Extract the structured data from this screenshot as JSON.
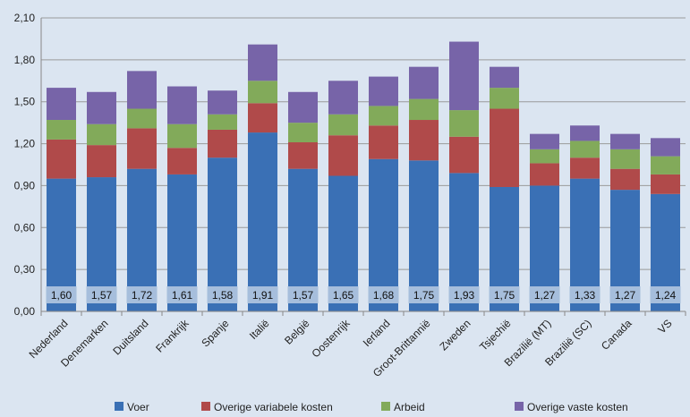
{
  "chart_data": {
    "type": "bar",
    "stacked": true,
    "categories": [
      "Nederland",
      "Denemarken",
      "Duitsland",
      "Frankrijk",
      "Spanje",
      "Italië",
      "België",
      "Oostenrijk",
      "Ierland",
      "Groot-Brittannië",
      "Zweden",
      "Tsjechië",
      "Brazilië (MT)",
      "Brazilië (SC)",
      "Canada",
      "VS"
    ],
    "series": [
      {
        "name": "Voer",
        "color": "#3a70b5",
        "values": [
          0.95,
          0.96,
          1.02,
          0.98,
          1.1,
          1.28,
          1.02,
          0.97,
          1.09,
          1.08,
          0.99,
          0.89,
          0.9,
          0.95,
          0.87,
          0.84
        ]
      },
      {
        "name": "Overige variabele kosten",
        "color": "#b04a4a",
        "values": [
          0.28,
          0.23,
          0.29,
          0.19,
          0.2,
          0.21,
          0.19,
          0.29,
          0.24,
          0.29,
          0.26,
          0.56,
          0.16,
          0.15,
          0.15,
          0.14
        ]
      },
      {
        "name": "Arbeid",
        "color": "#82aa5a",
        "values": [
          0.14,
          0.15,
          0.14,
          0.17,
          0.11,
          0.16,
          0.14,
          0.15,
          0.14,
          0.15,
          0.19,
          0.15,
          0.1,
          0.12,
          0.14,
          0.13
        ]
      },
      {
        "name": "Overige vaste kosten",
        "color": "#7764a8",
        "values": [
          0.23,
          0.23,
          0.27,
          0.27,
          0.17,
          0.26,
          0.22,
          0.24,
          0.21,
          0.23,
          0.49,
          0.15,
          0.11,
          0.11,
          0.11,
          0.13
        ]
      }
    ],
    "totals_labels": [
      "1,60",
      "1,57",
      "1,72",
      "1,61",
      "1,58",
      "1,91",
      "1,57",
      "1,65",
      "1,68",
      "1,75",
      "1,93",
      "1,75",
      "1,27",
      "1,33",
      "1,27",
      "1,24"
    ],
    "y_ticks": [
      "0,00",
      "0,30",
      "0,60",
      "0,90",
      "1,20",
      "1,50",
      "1,80",
      "2,10"
    ],
    "y_tick_values": [
      0,
      0.3,
      0.6,
      0.9,
      1.2,
      1.5,
      1.8,
      2.1
    ],
    "ylim": [
      0,
      2.1
    ],
    "grid": true,
    "legend_position": "bottom"
  }
}
